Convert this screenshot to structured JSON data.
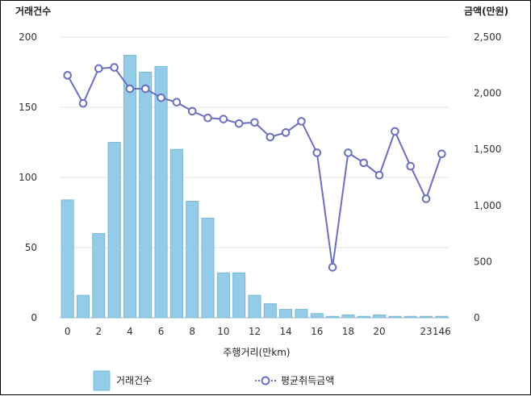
{
  "chart_data": {
    "type": "bar+line",
    "xlabel": "주행거리(만km)",
    "y_left_label": "거래건수",
    "y_right_label": "금액(만원)",
    "y_left_range": [
      0,
      200
    ],
    "y_right_range": [
      0,
      2500
    ],
    "y_left_ticks": [
      "0",
      "50",
      "100",
      "150",
      "200"
    ],
    "y_right_ticks": [
      "0",
      "500",
      "1,000",
      "1,500",
      "2,000",
      "2,500"
    ],
    "x_tick_labels": [
      "0",
      "2",
      "4",
      "6",
      "8",
      "10",
      "12",
      "14",
      "16",
      "18",
      "20",
      "23",
      "146"
    ],
    "categories": [
      "0",
      "1",
      "2",
      "3",
      "4",
      "5",
      "6",
      "7",
      "8",
      "9",
      "10",
      "11",
      "12",
      "13",
      "14",
      "15",
      "16",
      "17",
      "18",
      "19",
      "20",
      "21",
      "22",
      "23",
      "146"
    ],
    "grid": true,
    "legend_position": "bottom",
    "series": [
      {
        "name": "거래건수",
        "type": "bar",
        "axis": "left",
        "color": "#94cbe6",
        "values": [
          84,
          16,
          60,
          125,
          187,
          175,
          179,
          120,
          83,
          71,
          32,
          32,
          16,
          10,
          6,
          6,
          3,
          1,
          2,
          1,
          2,
          1,
          1,
          1,
          1
        ]
      },
      {
        "name": "평균취득금액",
        "type": "line",
        "axis": "right",
        "color": "#6a6fbf",
        "values": [
          2160,
          1910,
          2220,
          2230,
          2040,
          2040,
          1960,
          1920,
          1840,
          1780,
          1770,
          1730,
          1740,
          1610,
          1650,
          1750,
          1470,
          450,
          1470,
          1380,
          1270,
          1660,
          1350,
          1060,
          1460
        ]
      }
    ]
  }
}
